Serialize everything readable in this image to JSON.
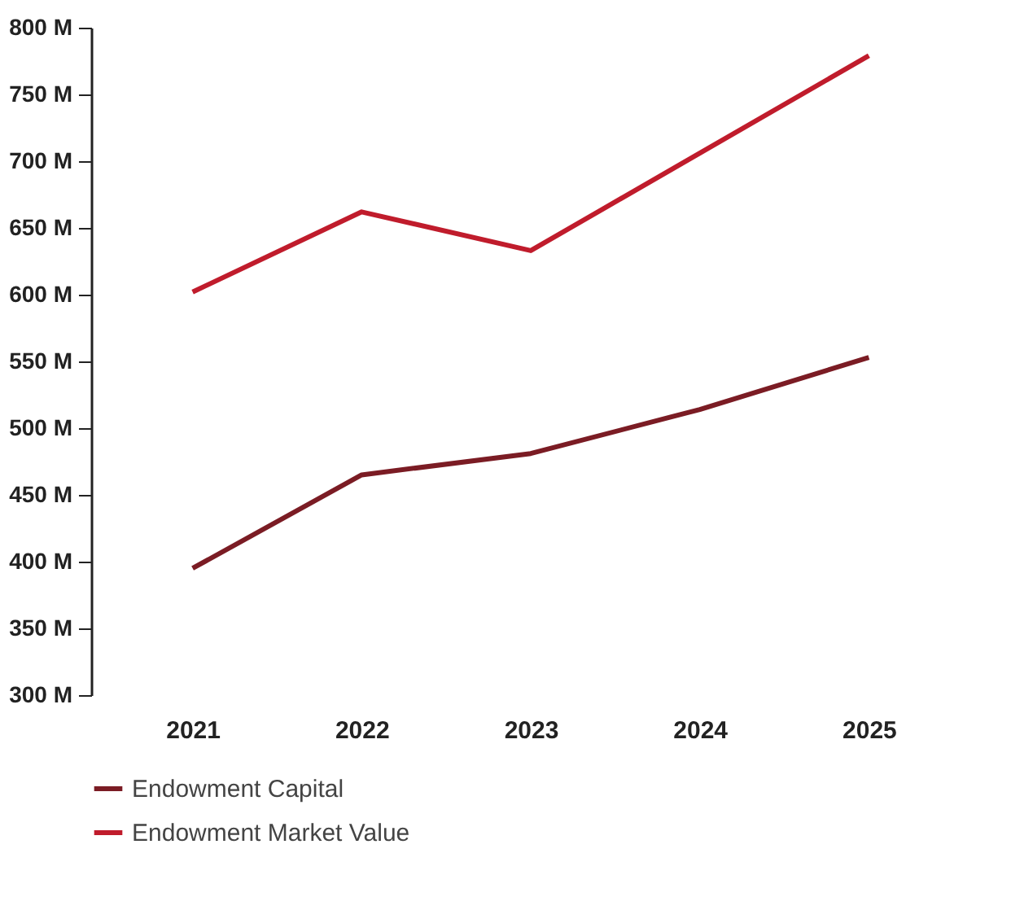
{
  "chart_data": {
    "type": "line",
    "categories": [
      "2021",
      "2022",
      "2023",
      "2024",
      "2025"
    ],
    "series": [
      {
        "name": "Endowment Capital",
        "color": "#7b1c24",
        "values": [
          395,
          465,
          481,
          514,
          553
        ]
      },
      {
        "name": "Endowment Market Value",
        "color": "#c01c2c",
        "values": [
          602,
          662,
          633,
          706,
          779
        ]
      }
    ],
    "ylim": [
      300,
      800
    ],
    "yticks": [
      {
        "value": 300,
        "label": "300 M"
      },
      {
        "value": 350,
        "label": "350 M"
      },
      {
        "value": 400,
        "label": "400 M"
      },
      {
        "value": 450,
        "label": "450 M"
      },
      {
        "value": 500,
        "label": "500 M"
      },
      {
        "value": 550,
        "label": "550 M"
      },
      {
        "value": 600,
        "label": "600 M"
      },
      {
        "value": 650,
        "label": "650 M"
      },
      {
        "value": 700,
        "label": "700 M"
      },
      {
        "value": 750,
        "label": "750 M"
      },
      {
        "value": 800,
        "label": "800 M"
      }
    ],
    "grid": false,
    "legend": "bottom",
    "marker": "none",
    "line_style": "solid"
  }
}
